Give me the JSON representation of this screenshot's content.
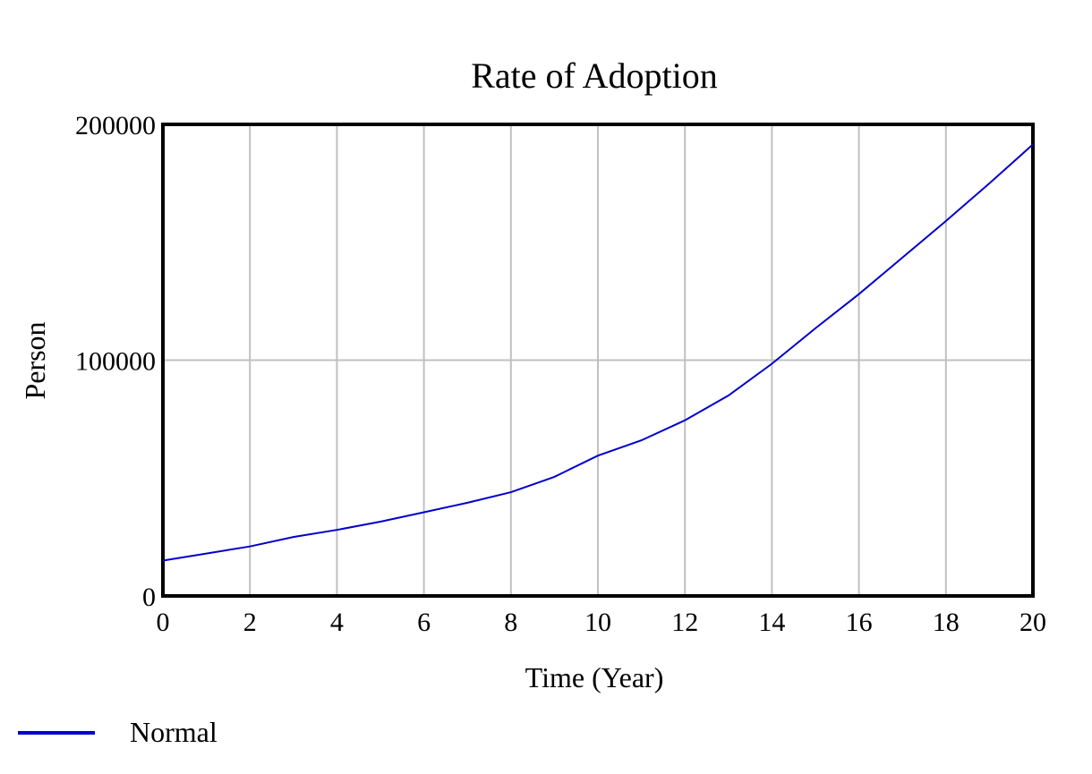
{
  "chart_data": {
    "type": "line",
    "title": "Rate of Adoption",
    "xlabel": "Time (Year)",
    "ylabel": "Person",
    "xlim": [
      0,
      20
    ],
    "ylim": [
      0,
      200000
    ],
    "x_ticks": [
      0,
      2,
      4,
      6,
      8,
      10,
      12,
      14,
      16,
      18,
      20
    ],
    "y_ticks": [
      0,
      100000,
      200000
    ],
    "x_tick_labels": [
      "0",
      "2",
      "4",
      "6",
      "8",
      "10",
      "12",
      "14",
      "16",
      "18",
      "20"
    ],
    "y_tick_labels": [
      "0",
      "100000",
      "200000"
    ],
    "grid": true,
    "legend_position": "bottom-left",
    "series": [
      {
        "name": "Normal",
        "color": "#0000cc",
        "x": [
          0,
          1,
          2,
          3,
          4,
          5,
          6,
          7,
          8,
          9,
          10,
          11,
          12,
          13,
          14,
          15,
          16,
          17,
          18,
          19,
          20
        ],
        "values": [
          15000,
          18000,
          21000,
          25000,
          28000,
          31500,
          35500,
          39500,
          44000,
          50500,
          59500,
          66000,
          74500,
          85000,
          98500,
          113500,
          128000,
          143500,
          159000,
          175000,
          191500
        ]
      }
    ]
  }
}
